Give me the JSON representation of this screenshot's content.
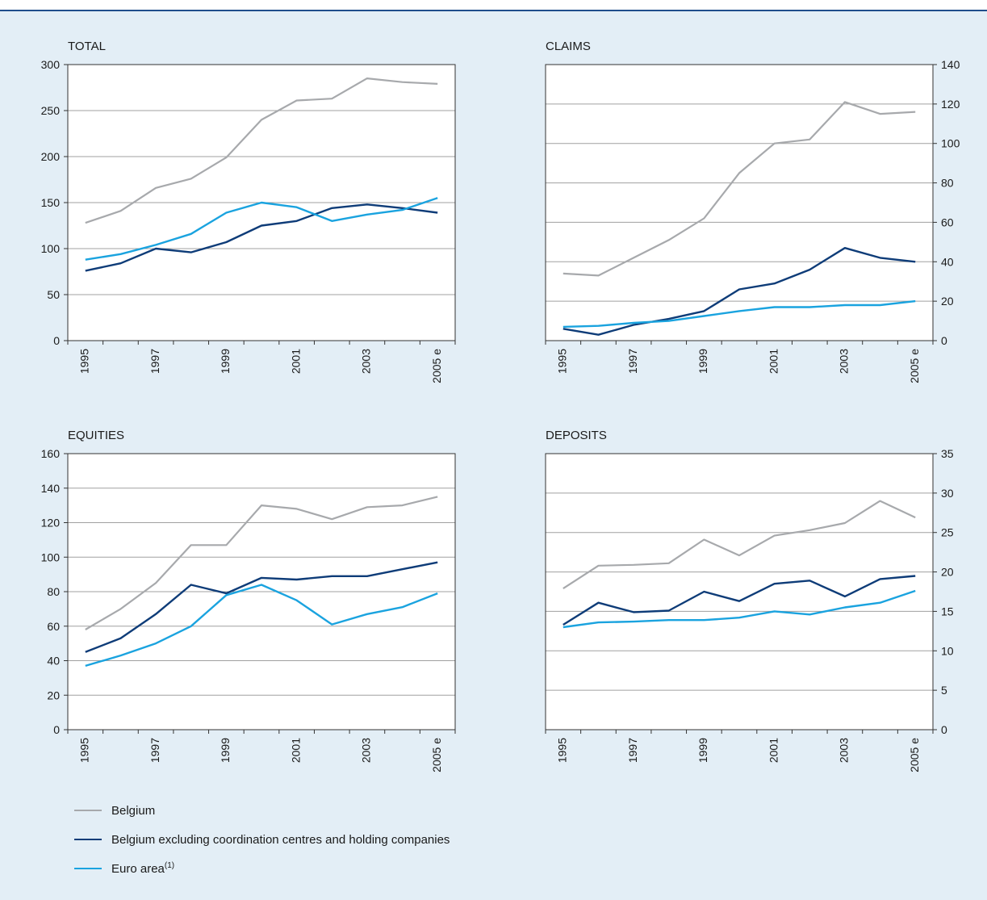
{
  "colors": {
    "belgium": "#a7a9ac",
    "belgium_excl": "#0e3c78",
    "euro": "#1aa3df"
  },
  "legend": {
    "belgium": "Belgium",
    "belgium_excl": "Belgium excluding coordination centres and holding companies",
    "euro": "Euro area",
    "euro_note": "(1)"
  },
  "chart_data": [
    {
      "type": "line",
      "title": "TOTAL",
      "x": [
        "1995",
        "1996",
        "1997",
        "1998",
        "1999",
        "2000",
        "2001",
        "2002",
        "2003",
        "2004",
        "2005 e"
      ],
      "tick_labels": [
        "1995",
        "1997",
        "1999",
        "2001",
        "2003",
        "2005 e"
      ],
      "yaxis_side": "left",
      "ylim": [
        0,
        300
      ],
      "yticks": [
        0,
        50,
        100,
        150,
        200,
        250,
        300
      ],
      "grid": true,
      "series": [
        {
          "name": "Belgium",
          "key": "belgium",
          "values": [
            128,
            141,
            166,
            176,
            199,
            240,
            261,
            263,
            285,
            281,
            279
          ]
        },
        {
          "name": "Belgium excluding coordination centres and holding companies",
          "key": "belgium_excl",
          "values": [
            76,
            84,
            100,
            96,
            107,
            125,
            130,
            144,
            148,
            144,
            139
          ]
        },
        {
          "name": "Euro area",
          "key": "euro",
          "values": [
            88,
            94,
            104,
            116,
            139,
            150,
            145,
            130,
            137,
            142,
            155
          ]
        }
      ]
    },
    {
      "type": "line",
      "title": "CLAIMS",
      "x": [
        "1995",
        "1996",
        "1997",
        "1998",
        "1999",
        "2000",
        "2001",
        "2002",
        "2003",
        "2004",
        "2005 e"
      ],
      "tick_labels": [
        "1995",
        "1997",
        "1999",
        "2001",
        "2003",
        "2005 e"
      ],
      "yaxis_side": "right",
      "ylim": [
        0,
        140
      ],
      "yticks": [
        0,
        20,
        40,
        60,
        80,
        100,
        120,
        140
      ],
      "grid": true,
      "series": [
        {
          "name": "Belgium",
          "key": "belgium",
          "values": [
            34,
            33,
            42,
            51,
            62,
            85,
            100,
            102,
            121,
            115,
            116
          ]
        },
        {
          "name": "Belgium excluding coordination centres and holding companies",
          "key": "belgium_excl",
          "values": [
            6,
            3,
            8,
            11,
            15,
            26,
            29,
            36,
            47,
            42,
            40
          ]
        },
        {
          "name": "Euro area",
          "key": "euro",
          "values": [
            7,
            7.5,
            9,
            10,
            12.5,
            15,
            17,
            17,
            18,
            18,
            20
          ]
        }
      ]
    },
    {
      "type": "line",
      "title": "EQUITIES",
      "x": [
        "1995",
        "1996",
        "1997",
        "1998",
        "1999",
        "2000",
        "2001",
        "2002",
        "2003",
        "2004",
        "2005 e"
      ],
      "tick_labels": [
        "1995",
        "1997",
        "1999",
        "2001",
        "2003",
        "2005 e"
      ],
      "yaxis_side": "left",
      "ylim": [
        0,
        160
      ],
      "yticks": [
        0,
        20,
        40,
        60,
        80,
        100,
        120,
        140,
        160
      ],
      "grid": true,
      "series": [
        {
          "name": "Belgium",
          "key": "belgium",
          "values": [
            58,
            70,
            85,
            107,
            107,
            130,
            128,
            122,
            129,
            130,
            135
          ]
        },
        {
          "name": "Belgium excluding coordination centres and holding companies",
          "key": "belgium_excl",
          "values": [
            45,
            53,
            67,
            84,
            79,
            88,
            87,
            89,
            89,
            93,
            97
          ]
        },
        {
          "name": "Euro area",
          "key": "euro",
          "values": [
            37,
            43,
            50,
            60,
            78,
            84,
            75,
            61,
            67,
            71,
            79
          ]
        }
      ]
    },
    {
      "type": "line",
      "title": "DEPOSITS",
      "x": [
        "1995",
        "1996",
        "1997",
        "1998",
        "1999",
        "2000",
        "2001",
        "2002",
        "2003",
        "2004",
        "2005 e"
      ],
      "tick_labels": [
        "1995",
        "1997",
        "1999",
        "2001",
        "2003",
        "2005 e"
      ],
      "yaxis_side": "right",
      "ylim": [
        0,
        35
      ],
      "yticks": [
        0,
        5,
        10,
        15,
        20,
        25,
        30,
        35
      ],
      "grid": true,
      "series": [
        {
          "name": "Belgium",
          "key": "belgium",
          "values": [
            17.9,
            20.8,
            20.9,
            21.1,
            24.1,
            22.1,
            24.6,
            25.3,
            26.2,
            29.0,
            26.9
          ]
        },
        {
          "name": "Belgium excluding coordination centres and holding companies",
          "key": "belgium_excl",
          "values": [
            13.3,
            16.1,
            14.9,
            15.1,
            17.5,
            16.3,
            18.5,
            18.9,
            16.9,
            19.1,
            19.5
          ]
        },
        {
          "name": "Euro area",
          "key": "euro",
          "values": [
            13.0,
            13.6,
            13.7,
            13.9,
            13.9,
            14.2,
            15.0,
            14.6,
            15.5,
            16.1,
            17.6
          ]
        }
      ]
    }
  ]
}
